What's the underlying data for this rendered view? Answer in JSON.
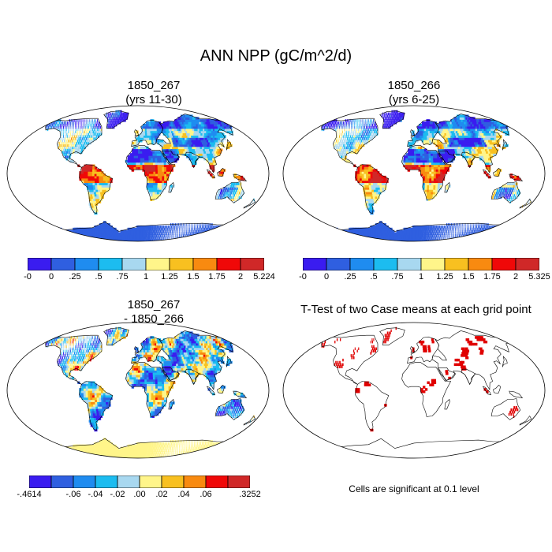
{
  "title": "ANN NPP (gC/m^2/d)",
  "panels": [
    {
      "id": "case1",
      "title_lines": [
        "1850_267",
        "(yrs 11-30)"
      ],
      "colorbar_labels": [
        "-0",
        "0",
        ".25",
        ".5",
        ".75",
        "1",
        "1.25",
        "1.5",
        "1.75",
        "2",
        "5.224"
      ]
    },
    {
      "id": "case2",
      "title_lines": [
        "1850_266",
        "(yrs 6-25)"
      ],
      "colorbar_labels": [
        "-0",
        "0",
        ".25",
        ".5",
        ".75",
        "1",
        "1.25",
        "1.5",
        "1.75",
        "2",
        "5.325"
      ]
    },
    {
      "id": "diff",
      "title_lines": [
        "1850_267",
        "- 1850_266"
      ],
      "colorbar_labels": [
        "-.4614",
        "",
        "-.06",
        "-.04",
        "-.02",
        ".00",
        ".02",
        ".04",
        ".06",
        "",
        ".3252"
      ]
    },
    {
      "id": "ttest",
      "title_lines": [
        "T-Test of two Case means at each grid point"
      ],
      "note": "Cells are significant at 0.1 level"
    }
  ],
  "colors": {
    "npp_scale": [
      "#3a1cf0",
      "#2f5fe0",
      "#1f8cf0",
      "#1cbcf0",
      "#a8d8f0",
      "#fff58a",
      "#f8c020",
      "#f88a10",
      "#f00808",
      "#d02828"
    ],
    "diff_scale": [
      "#3a1cf0",
      "#2f5fe0",
      "#1f8cf0",
      "#1cbcf0",
      "#a8d8f0",
      "#fff58a",
      "#f8c020",
      "#f88a10",
      "#f00808",
      "#d02828"
    ],
    "significance": "#e00000",
    "ocean": "#ffffff",
    "coast": "#000000"
  }
}
